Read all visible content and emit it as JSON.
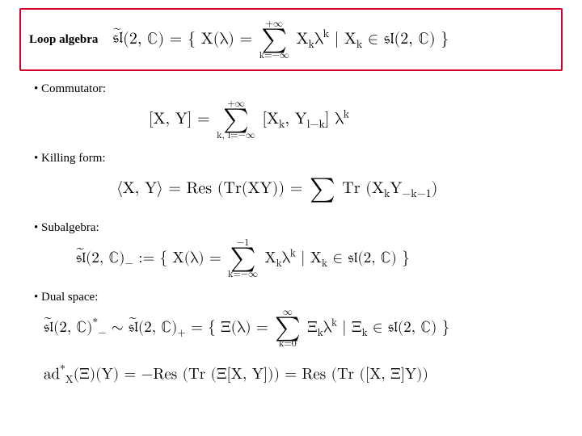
{
  "frame": {
    "border_color": "#d4002a",
    "label": "Loop algebra",
    "formula_html": "<span class='tilde-over'><span class='frak'>𝔰𝔩</span></span>(2, ℂ) = { X(λ) = <span class='sumwrap'><span class='lim'>+∞</span><span class='sigma'>∑</span><span class='lim'>k=−∞</span></span> X<sub>k</sub>λ<sup>k</sup> | X<sub>k</sub> ∈ <span class='frak'>𝔰𝔩</span>(2, ℂ) }"
  },
  "items": {
    "commutator": {
      "label": "• Commutator:",
      "formula_html": "[X, Y] = <span class='sumwrap'><span class='lim'>+∞</span><span class='sigma'>∑</span><span class='lim'>k, l=−∞</span></span> [X<sub>k</sub>, Y<sub>l−k</sub>] λ<sup>k</sup>"
    },
    "killing": {
      "label": "• Killing form:",
      "formula_html": "⟨X, Y⟩ = Res (Tr(XY)) = <span class='sumwrap'><span class='lim'>&nbsp;</span><span class='sigma'>∑</span><span class='lim'>&nbsp;</span></span> Tr (X<sub>k</sub>Y<sub>−k−1</sub>)"
    },
    "subalgebra": {
      "label": "• Subalgebra:",
      "formula_html": "<span class='tilde-over'><span class='frak'>𝔰𝔩</span></span>(2, ℂ)<sub>−</sub> := { X(λ) = <span class='sumwrap'><span class='lim'>−1</span><span class='sigma'>∑</span><span class='lim'>k=−∞</span></span> X<sub>k</sub>λ<sup>k</sup> | X<sub>k</sub> ∈ <span class='frak'>𝔰𝔩</span>(2, ℂ) }"
    },
    "dual": {
      "label": "• Dual space:",
      "formula1_html": "<span class='tilde-over'><span class='frak'>𝔰𝔩</span></span>(2, ℂ)<sup>*</sup><sub>−</sub> ∼ <span class='tilde-over'><span class='frak'>𝔰𝔩</span></span>(2, ℂ)<sub>+</sub> = { Ξ(λ) = <span class='sumwrap'><span class='lim'>∞</span><span class='sigma'>∑</span><span class='lim'>k=0</span></span> Ξ<sub>k</sub>λ<sup>k</sup> | Ξ<sub>k</sub> ∈ <span class='frak'>𝔰𝔩</span>(2, ℂ) }",
      "formula2_html": "ad<sup>*</sup><sub>X</sub>(Ξ)(Y) = −Res (Tr (Ξ[X, Y])) = Res (Tr ([X, Ξ]Y))"
    }
  },
  "style": {
    "label_fontsize": 15,
    "math_fontsize": 20,
    "text_color": "#000000",
    "background": "#ffffff"
  }
}
